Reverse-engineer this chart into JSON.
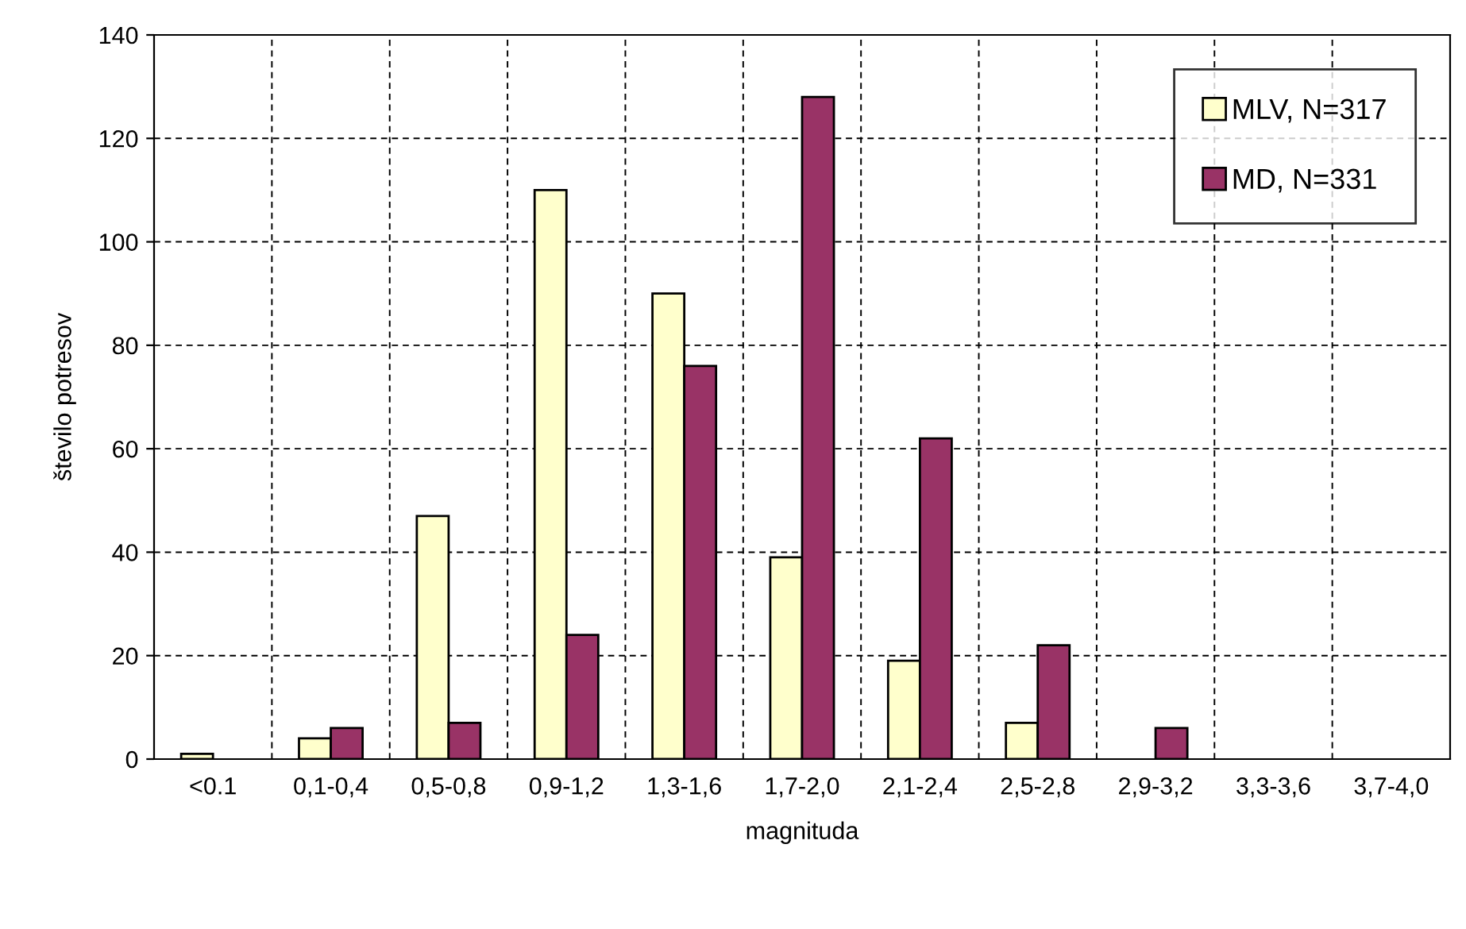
{
  "chart_data": {
    "type": "bar",
    "xlabel": "magnituda",
    "ylabel": "število potresov",
    "categories": [
      "<0.1",
      "0,1-0,4",
      "0,5-0,8",
      "0,9-1,2",
      "1,3-1,6",
      "1,7-2,0",
      "2,1-2,4",
      "2,5-2,8",
      "2,9-3,2",
      "3,3-3,6",
      "3,7-4,0"
    ],
    "series": [
      {
        "name": "MLV, N=317",
        "color": "#ffffcc",
        "values": [
          1,
          4,
          47,
          110,
          90,
          39,
          19,
          7,
          null,
          null,
          null
        ]
      },
      {
        "name": "MD, N=331",
        "color": "#993366",
        "values": [
          null,
          6,
          7,
          24,
          76,
          128,
          62,
          22,
          6,
          null,
          null
        ]
      }
    ],
    "ylim": [
      0,
      140
    ],
    "yticks": [
      0,
      20,
      40,
      60,
      80,
      100,
      120,
      140
    ],
    "grid": true,
    "legend": "top right"
  }
}
